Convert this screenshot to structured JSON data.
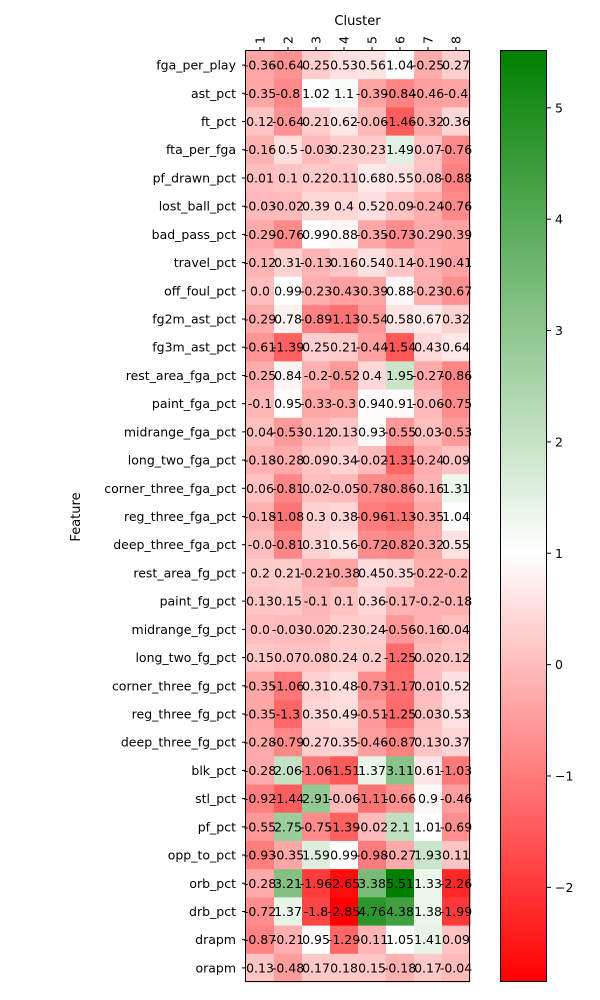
{
  "chart_data": {
    "type": "heatmap",
    "title": "",
    "xlabel": "Cluster",
    "ylabel": "Feature",
    "x_axis_position": "top",
    "columns": [
      "1",
      "2",
      "3",
      "4",
      "5",
      "6",
      "7",
      "8"
    ],
    "rows": [
      "fga_per_play",
      "ast_pct",
      "ft_pct",
      "fta_per_fga",
      "pf_drawn_pct",
      "lost_ball_pct",
      "bad_pass_pct",
      "travel_pct",
      "off_foul_pct",
      "fg2m_ast_pct",
      "fg3m_ast_pct",
      "rest_area_fga_pct",
      "paint_fga_pct",
      "midrange_fga_pct",
      "long_two_fga_pct",
      "corner_three_fga_pct",
      "reg_three_fga_pct",
      "deep_three_fga_pct",
      "rest_area_fg_pct",
      "paint_fg_pct",
      "midrange_fg_pct",
      "long_two_fg_pct",
      "corner_three_fg_pct",
      "reg_three_fg_pct",
      "deep_three_fg_pct",
      "blk_pct",
      "stl_pct",
      "pf_pct",
      "opp_to_pct",
      "orb_pct",
      "drb_pct",
      "drapm",
      "orapm"
    ],
    "values": [
      [
        -0.36,
        -0.64,
        0.25,
        0.53,
        0.56,
        1.04,
        -0.25,
        0.27
      ],
      [
        -0.35,
        -0.8,
        1.02,
        1.1,
        -0.39,
        -0.84,
        -0.46,
        -0.4
      ],
      [
        0.12,
        -0.64,
        0.21,
        0.62,
        -0.06,
        -1.46,
        -0.32,
        0.36
      ],
      [
        -0.16,
        0.5,
        -0.03,
        0.23,
        0.23,
        1.49,
        0.07,
        -0.76
      ],
      [
        0.01,
        0.1,
        0.22,
        0.11,
        0.68,
        0.55,
        0.08,
        -0.88
      ],
      [
        -0.03,
        -0.02,
        0.39,
        0.4,
        0.52,
        0.09,
        -0.24,
        -0.76
      ],
      [
        -0.29,
        -0.76,
        0.99,
        0.88,
        -0.35,
        -0.73,
        -0.29,
        -0.39
      ],
      [
        -0.12,
        0.31,
        -0.13,
        0.16,
        0.54,
        0.14,
        -0.19,
        -0.41
      ],
      [
        0.0,
        0.99,
        -0.23,
        -0.43,
        -0.39,
        0.88,
        -0.23,
        -0.67
      ],
      [
        -0.29,
        0.78,
        -0.89,
        -1.13,
        -0.54,
        0.58,
        0.67,
        0.32
      ],
      [
        -0.61,
        -1.39,
        0.25,
        0.21,
        -0.44,
        -1.54,
        0.43,
        0.64
      ],
      [
        -0.25,
        0.84,
        -0.2,
        -0.52,
        0.4,
        1.95,
        -0.27,
        -0.86
      ],
      [
        -0.1,
        0.95,
        -0.33,
        -0.3,
        0.94,
        0.91,
        -0.06,
        -0.75
      ],
      [
        0.04,
        -0.53,
        -0.12,
        0.13,
        0.93,
        -0.55,
        0.03,
        -0.53
      ],
      [
        -0.18,
        -0.28,
        0.09,
        0.34,
        -0.02,
        -1.31,
        -0.24,
        0.09
      ],
      [
        0.06,
        -0.81,
        0.02,
        -0.05,
        -0.78,
        -0.86,
        -0.16,
        1.31
      ],
      [
        -0.18,
        -1.08,
        0.3,
        0.38,
        -0.96,
        -1.13,
        -0.35,
        1.04
      ],
      [
        -0.0,
        -0.81,
        0.31,
        0.56,
        -0.72,
        -0.82,
        -0.32,
        0.55
      ],
      [
        0.2,
        0.21,
        -0.21,
        -0.38,
        0.45,
        0.35,
        -0.22,
        -0.2
      ],
      [
        0.13,
        0.15,
        -0.1,
        0.1,
        0.36,
        -0.17,
        -0.2,
        -0.18
      ],
      [
        0.0,
        -0.03,
        -0.02,
        0.23,
        0.24,
        -0.56,
        -0.16,
        0.04
      ],
      [
        0.15,
        0.07,
        0.08,
        0.24,
        0.2,
        -1.25,
        0.02,
        0.12
      ],
      [
        -0.35,
        -1.06,
        0.31,
        0.48,
        -0.73,
        -1.17,
        0.01,
        0.52
      ],
      [
        -0.35,
        -1.3,
        0.35,
        0.49,
        -0.51,
        -1.25,
        0.03,
        0.53
      ],
      [
        -0.28,
        -0.79,
        0.27,
        0.35,
        -0.46,
        -0.87,
        0.13,
        0.37
      ],
      [
        -0.28,
        2.06,
        -1.06,
        -1.51,
        1.37,
        3.11,
        0.61,
        -1.03
      ],
      [
        -0.92,
        -1.44,
        2.91,
        -0.06,
        -1.11,
        -0.66,
        0.9,
        -0.46
      ],
      [
        -0.55,
        2.75,
        -0.75,
        -1.39,
        -0.02,
        2.1,
        1.01,
        -0.69
      ],
      [
        -0.93,
        -0.35,
        1.59,
        0.99,
        -0.98,
        -0.27,
        1.93,
        0.11
      ],
      [
        -0.28,
        3.21,
        -1.96,
        -2.65,
        3.38,
        5.51,
        1.33,
        -2.26
      ],
      [
        -0.72,
        1.37,
        -1.8,
        -2.85,
        4.76,
        4.38,
        1.38,
        -1.99
      ],
      [
        -0.87,
        -0.21,
        0.95,
        -1.29,
        -0.11,
        1.05,
        1.41,
        0.09
      ],
      [
        0.13,
        -0.48,
        0.17,
        0.18,
        0.15,
        -0.18,
        0.17,
        -0.04
      ]
    ],
    "value_labels": [
      [
        "-0.36",
        "-0.64",
        "0.25",
        "0.53",
        "0.56",
        "1.04",
        "-0.25",
        "0.27"
      ],
      [
        "-0.35",
        "-0.8",
        "1.02",
        "1.1",
        "-0.39",
        "-0.84",
        "-0.46",
        "-0.4"
      ],
      [
        "0.12",
        "-0.64",
        "0.21",
        "0.62",
        "-0.06",
        "-1.46",
        "-0.32",
        "0.36"
      ],
      [
        "-0.16",
        "0.5",
        "-0.03",
        "0.23",
        "0.23",
        "1.49",
        "0.07",
        "-0.76"
      ],
      [
        "0.01",
        "0.1",
        "0.22",
        "0.11",
        "0.68",
        "0.55",
        "0.08",
        "-0.88"
      ],
      [
        "-0.03",
        "-0.02",
        "0.39",
        "0.4",
        "0.52",
        "0.09",
        "-0.24",
        "-0.76"
      ],
      [
        "-0.29",
        "-0.76",
        "0.99",
        "0.88",
        "-0.35",
        "-0.73",
        "-0.29",
        "-0.39"
      ],
      [
        "-0.12",
        "0.31",
        "-0.13",
        "0.16",
        "0.54",
        "0.14",
        "-0.19",
        "-0.41"
      ],
      [
        "0.0",
        "0.99",
        "-0.23",
        "-0.43",
        "-0.39",
        "0.88",
        "-0.23",
        "-0.67"
      ],
      [
        "-0.29",
        "0.78",
        "-0.89",
        "-1.13",
        "-0.54",
        "0.58",
        "0.67",
        "0.32"
      ],
      [
        "-0.61",
        "-1.39",
        "0.25",
        "0.21",
        "-0.44",
        "-1.54",
        "0.43",
        "0.64"
      ],
      [
        "-0.25",
        "0.84",
        "-0.2",
        "-0.52",
        "0.4",
        "1.95",
        "-0.27",
        "-0.86"
      ],
      [
        "-0.1",
        "0.95",
        "-0.33",
        "-0.3",
        "0.94",
        "0.91",
        "-0.06",
        "-0.75"
      ],
      [
        "0.04",
        "-0.53",
        "-0.12",
        "0.13",
        "0.93",
        "-0.55",
        "0.03",
        "-0.53"
      ],
      [
        "-0.18",
        "-0.28",
        "0.09",
        "0.34",
        "-0.02",
        "-1.31",
        "-0.24",
        "0.09"
      ],
      [
        "0.06",
        "-0.81",
        "0.02",
        "-0.05",
        "-0.78",
        "-0.86",
        "-0.16",
        "1.31"
      ],
      [
        "-0.18",
        "-1.08",
        "0.3",
        "0.38",
        "-0.96",
        "-1.13",
        "-0.35",
        "1.04"
      ],
      [
        "-0.0",
        "-0.81",
        "0.31",
        "0.56",
        "-0.72",
        "-0.82",
        "-0.32",
        "0.55"
      ],
      [
        "0.2",
        "0.21",
        "-0.21",
        "-0.38",
        "0.45",
        "0.35",
        "-0.22",
        "-0.2"
      ],
      [
        "0.13",
        "0.15",
        "-0.1",
        "0.1",
        "0.36",
        "-0.17",
        "-0.2",
        "-0.18"
      ],
      [
        "0.0",
        "-0.03",
        "-0.02",
        "0.23",
        "0.24",
        "-0.56",
        "-0.16",
        "0.04"
      ],
      [
        "0.15",
        "0.07",
        "0.08",
        "0.24",
        "0.2",
        "-1.25",
        "0.02",
        "0.12"
      ],
      [
        "-0.35",
        "-1.06",
        "0.31",
        "0.48",
        "-0.73",
        "-1.17",
        "0.01",
        "0.52"
      ],
      [
        "-0.35",
        "-1.3",
        "0.35",
        "0.49",
        "-0.51",
        "-1.25",
        "0.03",
        "0.53"
      ],
      [
        "-0.28",
        "-0.79",
        "0.27",
        "0.35",
        "-0.46",
        "-0.87",
        "0.13",
        "0.37"
      ],
      [
        "-0.28",
        "2.06",
        "-1.06",
        "-1.51",
        "1.37",
        "3.11",
        "0.61",
        "-1.03"
      ],
      [
        "-0.92",
        "-1.44",
        "2.91",
        "-0.06",
        "-1.11",
        "-0.66",
        "0.9",
        "-0.46"
      ],
      [
        "-0.55",
        "2.75",
        "-0.75",
        "-1.39",
        "-0.02",
        "2.1",
        "1.01",
        "-0.69"
      ],
      [
        "-0.93",
        "-0.35",
        "1.59",
        "0.99",
        "-0.98",
        "-0.27",
        "1.93",
        "0.11"
      ],
      [
        "-0.28",
        "3.21",
        "-1.96",
        "-2.65",
        "3.38",
        "5.51",
        "1.33",
        "-2.26"
      ],
      [
        "-0.72",
        "1.37",
        "-1.8",
        "-2.85",
        "4.76",
        "4.38",
        "1.38",
        "-1.99"
      ],
      [
        "-0.87",
        "-0.21",
        "0.95",
        "-1.29",
        "-0.11",
        "1.05",
        "1.41",
        "0.09"
      ],
      [
        "0.13",
        "-0.48",
        "0.17",
        "0.18",
        "0.15",
        "-0.18",
        "0.17",
        "-0.04"
      ]
    ],
    "colorbar": {
      "range": [
        -2.85,
        5.51
      ],
      "center": 1.0,
      "colors": {
        "low": "#ff0000",
        "center": "#ffffff",
        "high": "#008000"
      },
      "ticks": [
        -2,
        -1,
        0,
        1,
        2,
        3,
        4,
        5
      ],
      "tick_labels": [
        "−2",
        "−1",
        "0",
        "1",
        "2",
        "3",
        "4",
        "5"
      ]
    },
    "grid": false,
    "legend": "colorbar-right"
  }
}
